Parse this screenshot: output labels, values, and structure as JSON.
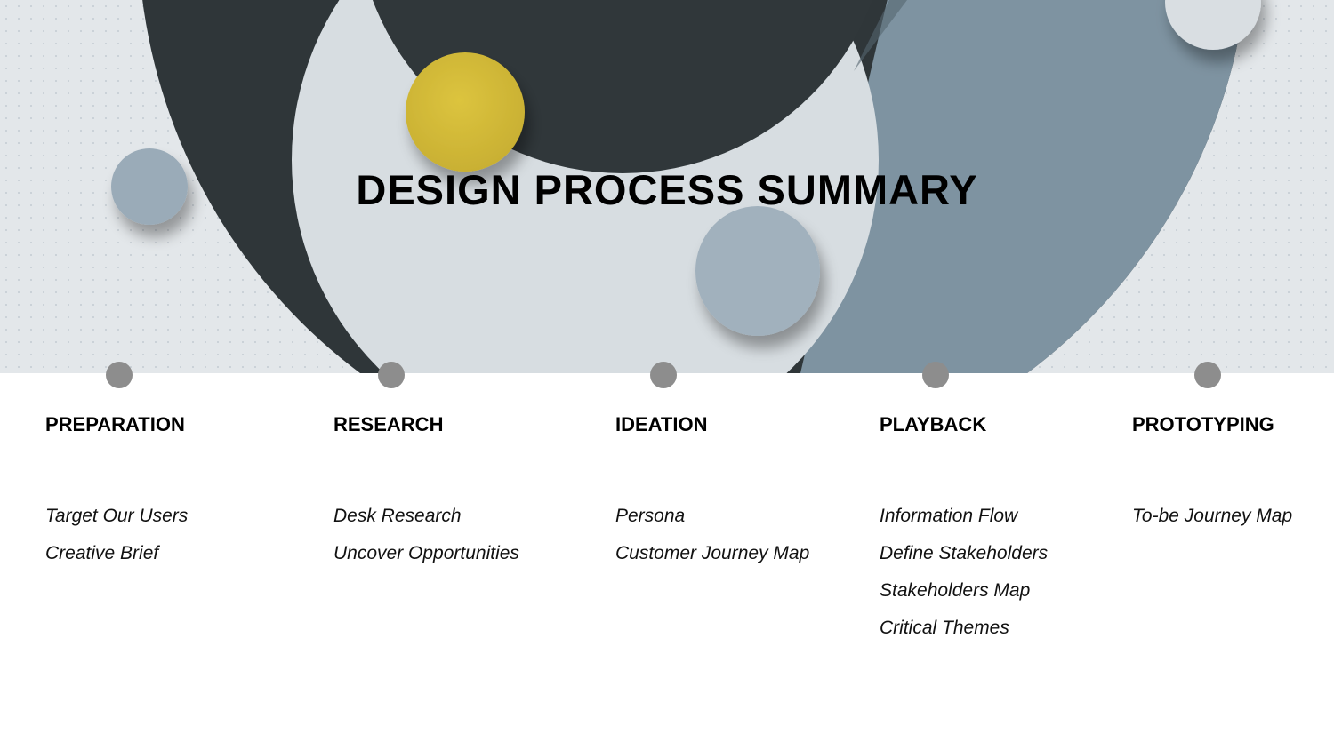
{
  "title": "DESIGN PROCESS SUMMARY",
  "colors": {
    "dark_arc": "#2f3639",
    "slate_arc": "#7e93a1",
    "light_disc": "#d7dde1",
    "yellow_disc": "#d1b93a",
    "blue_disc": "#9aabb8",
    "timeline_dot": "#8d8d8d"
  },
  "stages": [
    {
      "heading": "PREPARATION",
      "items": [
        "Target Our Users",
        "Creative Brief"
      ]
    },
    {
      "heading": "RESEARCH",
      "items": [
        "Desk Research",
        "Uncover Opportunities"
      ]
    },
    {
      "heading": "IDEATION",
      "items": [
        "Persona",
        "Customer Journey Map"
      ]
    },
    {
      "heading": "PLAYBACK",
      "items": [
        "Information Flow",
        "Define Stakeholders",
        "Stakeholders Map",
        "Critical Themes"
      ]
    },
    {
      "heading": "PROTOTYPING",
      "items": [
        "To-be Journey Map"
      ]
    }
  ]
}
